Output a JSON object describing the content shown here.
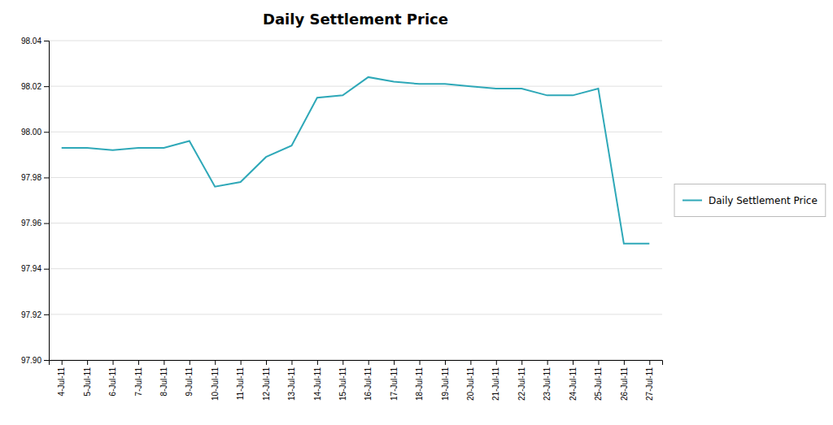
{
  "chart_data": {
    "type": "line",
    "title": "Daily Settlement Price",
    "categories": [
      "4-Jul-11",
      "5-Jul-11",
      "6-Jul-11",
      "7-Jul-11",
      "8-Jul-11",
      "9-Jul-11",
      "10-Jul-11",
      "11-Jul-11",
      "12-Jul-11",
      "13-Jul-11",
      "14-Jul-11",
      "15-Jul-11",
      "16-Jul-11",
      "17-Jul-11",
      "18-Jul-11",
      "19-Jul-11",
      "20-Jul-11",
      "21-Jul-11",
      "22-Jul-11",
      "23-Jul-11",
      "24-Jul-11",
      "25-Jul-11",
      "26-Jul-11",
      "27-Jul-11"
    ],
    "series": [
      {
        "name": "Daily Settlement Price",
        "color": "#2EA8B8",
        "values": [
          97.993,
          97.993,
          97.992,
          97.993,
          97.993,
          97.996,
          97.976,
          97.978,
          97.989,
          97.994,
          98.015,
          98.016,
          98.024,
          98.022,
          98.021,
          98.021,
          98.02,
          98.019,
          98.019,
          98.016,
          98.016,
          98.019,
          97.951,
          97.951
        ]
      }
    ],
    "ylim": [
      97.9,
      98.04
    ],
    "yticks": [
      {
        "value": 97.9,
        "label": "97.90"
      },
      97.92,
      97.94,
      97.96,
      97.98,
      {
        "value": 98.0,
        "label": "98.00"
      },
      98.02,
      98.04
    ],
    "grid": true,
    "legend": "right"
  }
}
